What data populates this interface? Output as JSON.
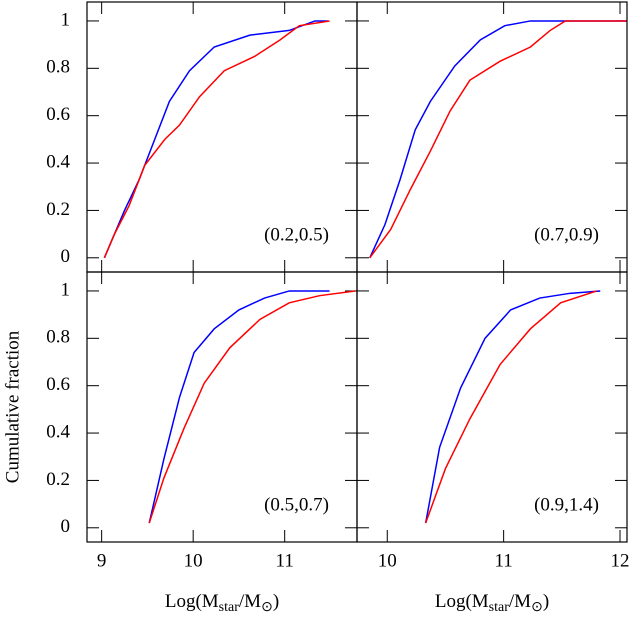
{
  "chart_data": [
    {
      "type": "line",
      "ylabel": "Cumulative fraction",
      "annotation": "(0.2,0.5)",
      "xlim": [
        8.84,
        11.79
      ],
      "ylim": [
        -0.06,
        1.08
      ],
      "yticks": [
        0,
        0.2,
        0.4,
        0.6,
        0.8,
        1
      ],
      "series": [
        {
          "color": "#0000ff",
          "x": [
            9.03,
            9.14,
            9.25,
            9.41,
            9.58,
            9.74,
            9.96,
            10.23,
            10.62,
            11.05,
            11.33,
            11.47
          ],
          "values": [
            0,
            0.1,
            0.2,
            0.33,
            0.5,
            0.66,
            0.79,
            0.89,
            0.94,
            0.96,
            1,
            1
          ]
        },
        {
          "color": "#ff0000",
          "x": [
            9.03,
            9.14,
            9.3,
            9.47,
            9.69,
            9.85,
            10.07,
            10.34,
            10.67,
            10.95,
            11.16,
            11.49
          ],
          "values": [
            0,
            0.1,
            0.22,
            0.39,
            0.5,
            0.56,
            0.68,
            0.79,
            0.85,
            0.92,
            0.98,
            1
          ]
        }
      ]
    },
    {
      "type": "line",
      "annotation": "(0.7,0.9)",
      "xlim": [
        9.74,
        12.06
      ],
      "ylim": [
        -0.06,
        1.08
      ],
      "series": [
        {
          "color": "#0000ff",
          "x": [
            9.85,
            9.98,
            10.11,
            10.24,
            10.37,
            10.58,
            10.8,
            11.01,
            11.23,
            12.06
          ],
          "values": [
            0,
            0.14,
            0.33,
            0.54,
            0.66,
            0.81,
            0.92,
            0.98,
            1,
            1
          ]
        },
        {
          "color": "#ff0000",
          "x": [
            9.85,
            10.03,
            10.2,
            10.37,
            10.54,
            10.71,
            10.97,
            11.23,
            11.4,
            11.53,
            12.06
          ],
          "values": [
            0,
            0.12,
            0.29,
            0.45,
            0.62,
            0.75,
            0.83,
            0.89,
            0.96,
            1,
            1
          ]
        }
      ]
    },
    {
      "type": "line",
      "annotation": "(0.5,0.7)",
      "xlabel": [
        "Log(M",
        "star",
        "/M",
        "⊙",
        ")"
      ],
      "xlim": [
        8.84,
        11.79
      ],
      "ylim": [
        -0.06,
        1.08
      ],
      "xticks": [
        9,
        10,
        11
      ],
      "yticks": [
        0,
        0.2,
        0.4,
        0.6,
        0.8,
        1
      ],
      "series": [
        {
          "color": "#0000ff",
          "x": [
            9.52,
            9.68,
            9.85,
            10.01,
            10.23,
            10.5,
            10.78,
            11.05,
            11.49
          ],
          "values": [
            0.02,
            0.29,
            0.55,
            0.74,
            0.84,
            0.92,
            0.97,
            1,
            1
          ]
        },
        {
          "color": "#ff0000",
          "x": [
            9.52,
            9.68,
            9.9,
            10.12,
            10.4,
            10.73,
            11.05,
            11.38,
            11.77
          ],
          "values": [
            0.02,
            0.21,
            0.42,
            0.61,
            0.76,
            0.88,
            0.95,
            0.98,
            1
          ]
        }
      ]
    },
    {
      "type": "line",
      "annotation": "(0.9,1.4)",
      "xlabel": [
        "Log(M",
        "star",
        "/M",
        "⊙",
        ")"
      ],
      "xlim": [
        9.74,
        12.06
      ],
      "ylim": [
        -0.06,
        1.08
      ],
      "xticks": [
        10,
        11,
        12
      ],
      "series": [
        {
          "color": "#0000ff",
          "x": [
            10.33,
            10.45,
            10.63,
            10.84,
            11.06,
            11.31,
            11.57,
            11.83
          ],
          "values": [
            0.02,
            0.34,
            0.59,
            0.8,
            0.92,
            0.97,
            0.99,
            1
          ]
        },
        {
          "color": "#ff0000",
          "x": [
            10.33,
            10.5,
            10.71,
            10.97,
            11.23,
            11.49,
            11.8
          ],
          "values": [
            0.02,
            0.25,
            0.46,
            0.69,
            0.84,
            0.95,
            1
          ]
        }
      ]
    }
  ]
}
